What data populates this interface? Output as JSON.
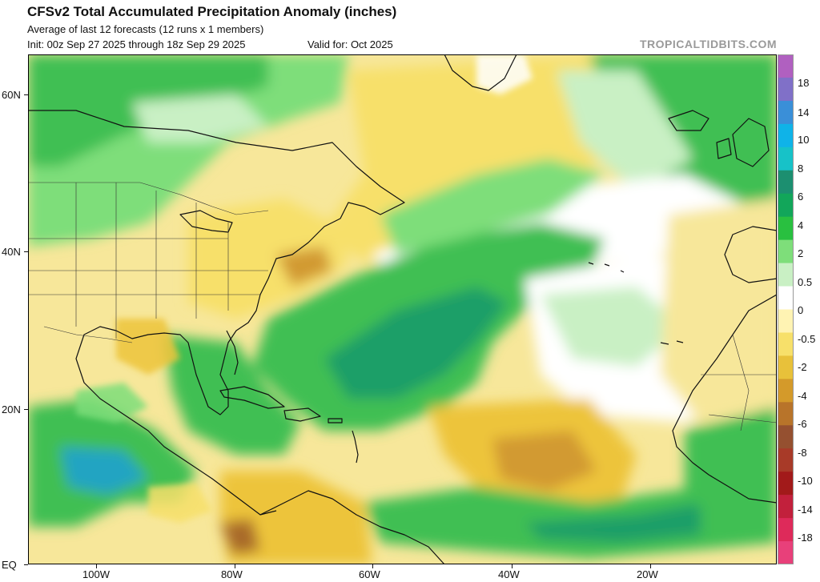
{
  "header": {
    "title": "CFSv2 Total Accumulated Precipitation Anomaly (inches)",
    "subtitle": "Average of last 12 forecasts (12 runs x 1 members)",
    "init": "Init: 00z Sep 27 2025 through 18z Sep 29 2025",
    "valid": "Valid for: Oct 2025",
    "brand": "TROPICALTIDBITS.COM"
  },
  "axes": {
    "lat_labels": [
      "60N",
      "40N",
      "20N",
      "EQ"
    ],
    "lon_labels": [
      "100W",
      "80W",
      "60W",
      "40W",
      "20W"
    ]
  },
  "legend": {
    "labels": [
      "18",
      "14",
      "10",
      "8",
      "6",
      "4",
      "2",
      "0.5",
      "0",
      "-0.5",
      "-2",
      "-4",
      "-6",
      "-8",
      "-10",
      "-14",
      "-18"
    ],
    "colors": [
      "#b060c0",
      "#8070c8",
      "#3a8fd8",
      "#0fb3e8",
      "#17c2c8",
      "#1c8f70",
      "#12a65a",
      "#29c040",
      "#7ede7a",
      "#c9f0c4",
      "#ffffff",
      "#fff3b3",
      "#f7e06a",
      "#e8c13a",
      "#d49a2a",
      "#b8742a",
      "#955030",
      "#a83a28",
      "#a21a1a",
      "#c2203c",
      "#de2a5a",
      "#e8407a"
    ]
  },
  "colors": {
    "ocean_base": "#f7e79a",
    "wet": "#3fbf52",
    "wetter": "#1f9f68",
    "wettest": "#23a4c2",
    "neutral": "#ffffff",
    "dry": "#edc43a",
    "drier": "#d29a30",
    "driest": "#a96a2c",
    "coast": "#111111"
  }
}
